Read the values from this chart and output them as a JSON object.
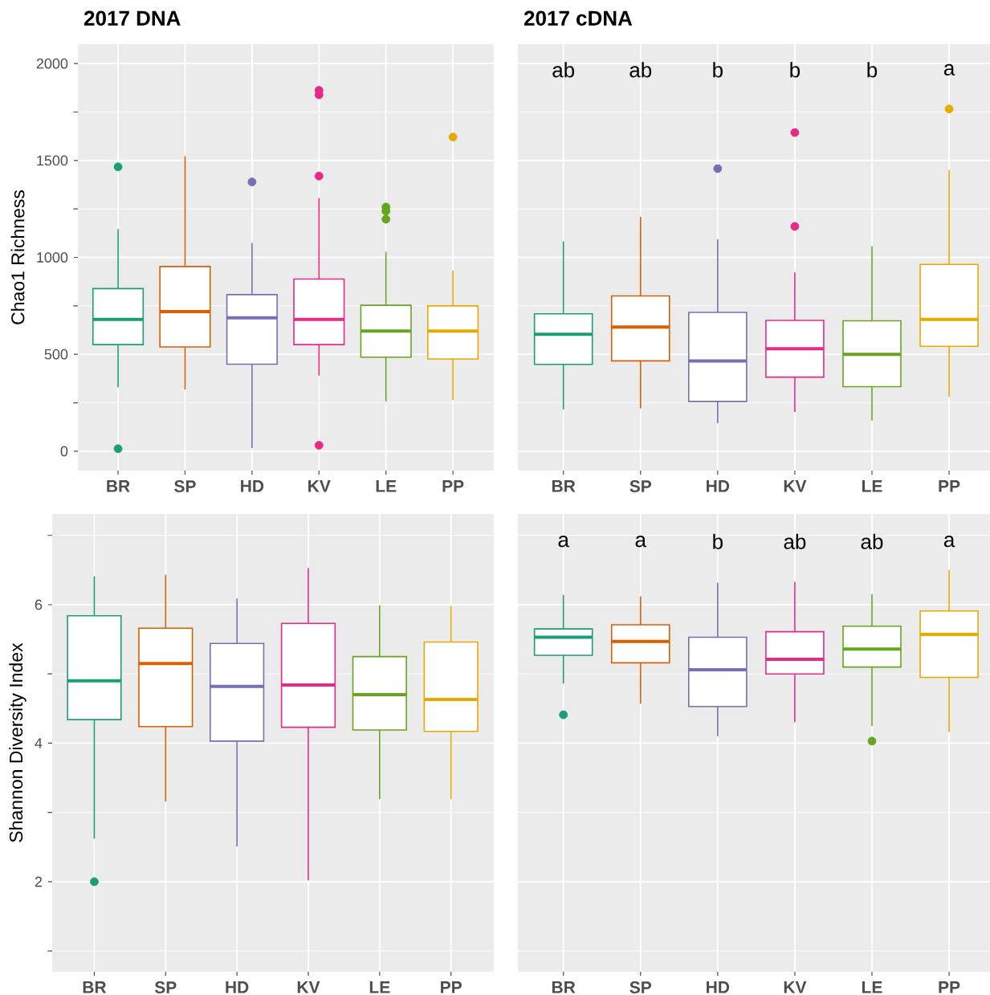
{
  "chart_data": [
    {
      "type": "box",
      "title": "2017 DNA",
      "ylabel": "Chao1 Richness",
      "categories": [
        "BR",
        "SP",
        "HD",
        "KV",
        "LE",
        "PP"
      ],
      "colors": [
        "#1b9e77",
        "#d95f02",
        "#7570b3",
        "#e7298a",
        "#66a61e",
        "#e6ab02"
      ],
      "boxes": [
        {
          "low": 330,
          "q1": 550,
          "median": 680,
          "q3": 839,
          "high": 1146,
          "outliers": [
            1467,
            13
          ]
        },
        {
          "low": 319,
          "q1": 538,
          "median": 720,
          "q3": 953,
          "high": 1522
        },
        {
          "low": 16,
          "q1": 449,
          "median": 688,
          "q3": 808,
          "high": 1075,
          "outliers": [
            1389
          ]
        },
        {
          "low": 390,
          "q1": 550,
          "median": 680,
          "q3": 888,
          "high": 1306,
          "outliers": [
            1862,
            1839,
            1420,
            31
          ]
        },
        {
          "low": 257,
          "q1": 485,
          "median": 620,
          "q3": 753,
          "high": 1029,
          "outliers": [
            1260,
            1239,
            1197
          ]
        },
        {
          "low": 265,
          "q1": 476,
          "median": 620,
          "q3": 750,
          "high": 932,
          "outliers": [
            1621
          ]
        }
      ],
      "ylim": [
        -100,
        2100
      ],
      "yticks": [
        0,
        500,
        1000,
        1500,
        2000
      ],
      "grid": true
    },
    {
      "type": "box",
      "title": "2017 cDNA",
      "categories": [
        "BR",
        "SP",
        "HD",
        "KV",
        "LE",
        "PP"
      ],
      "colors": [
        "#1b9e77",
        "#d95f02",
        "#7570b3",
        "#e7298a",
        "#66a61e",
        "#e6ab02"
      ],
      "boxes": [
        {
          "low": 216,
          "q1": 448,
          "median": 603,
          "q3": 709,
          "high": 1083
        },
        {
          "low": 221,
          "q1": 466,
          "median": 641,
          "q3": 801,
          "high": 1209
        },
        {
          "low": 145,
          "q1": 257,
          "median": 466,
          "q3": 716,
          "high": 1093,
          "outliers": [
            1458
          ]
        },
        {
          "low": 203,
          "q1": 382,
          "median": 529,
          "q3": 675,
          "high": 922,
          "outliers": [
            1644,
            1160
          ]
        },
        {
          "low": 158,
          "q1": 333,
          "median": 500,
          "q3": 673,
          "high": 1057
        },
        {
          "low": 281,
          "q1": 541,
          "median": 680,
          "q3": 964,
          "high": 1451,
          "outliers": [
            1766
          ]
        }
      ],
      "ylim": [
        -100,
        2100
      ],
      "yticks": [
        0,
        500,
        1000,
        1500,
        2000
      ],
      "grid": true,
      "tick_labels": "x",
      "annotations": [
        "ab",
        "ab",
        "b",
        "b",
        "b",
        "a"
      ]
    },
    {
      "type": "box",
      "ylabel": "Shannon Diversity Index",
      "categories": [
        "BR",
        "SP",
        "HD",
        "KV",
        "LE",
        "PP"
      ],
      "colors": [
        "#1b9e77",
        "#d95f02",
        "#7570b3",
        "#e7298a",
        "#66a61e",
        "#e6ab02"
      ],
      "boxes": [
        {
          "low": 2.62,
          "q1": 4.34,
          "median": 4.9,
          "q3": 5.84,
          "high": 6.41,
          "outliers": [
            2.0
          ]
        },
        {
          "low": 3.16,
          "q1": 4.24,
          "median": 5.15,
          "q3": 5.66,
          "high": 6.43
        },
        {
          "low": 2.51,
          "q1": 4.03,
          "median": 4.82,
          "q3": 5.44,
          "high": 6.09
        },
        {
          "low": 2.02,
          "q1": 4.23,
          "median": 4.84,
          "q3": 5.73,
          "high": 6.53
        },
        {
          "low": 3.19,
          "q1": 4.19,
          "median": 4.7,
          "q3": 5.25,
          "high": 5.99
        },
        {
          "low": 3.19,
          "q1": 4.17,
          "median": 4.63,
          "q3": 5.46,
          "high": 5.98
        }
      ],
      "ylim": [
        0.7,
        7.31
      ],
      "yticks": [
        2,
        4,
        6
      ],
      "grid": true
    },
    {
      "type": "box",
      "categories": [
        "BR",
        "SP",
        "HD",
        "KV",
        "LE",
        "PP"
      ],
      "colors": [
        "#1b9e77",
        "#d95f02",
        "#7570b3",
        "#e7298a",
        "#66a61e",
        "#e6ab02"
      ],
      "boxes": [
        {
          "low": 4.86,
          "q1": 5.27,
          "median": 5.53,
          "q3": 5.65,
          "high": 6.14,
          "outliers": [
            4.41
          ]
        },
        {
          "low": 4.57,
          "q1": 5.16,
          "median": 5.47,
          "q3": 5.71,
          "high": 6.12
        },
        {
          "low": 4.1,
          "q1": 4.53,
          "median": 5.06,
          "q3": 5.53,
          "high": 6.32
        },
        {
          "low": 4.3,
          "q1": 5.0,
          "median": 5.21,
          "q3": 5.61,
          "high": 6.33
        },
        {
          "low": 4.25,
          "q1": 5.1,
          "median": 5.36,
          "q3": 5.69,
          "high": 6.15,
          "outliers": [
            4.03
          ]
        },
        {
          "low": 4.16,
          "q1": 4.95,
          "median": 5.57,
          "q3": 5.91,
          "high": 6.5
        }
      ],
      "ylim": [
        0.7,
        7.31
      ],
      "yticks": [
        2,
        4,
        6
      ],
      "grid": true,
      "tick_labels": "x",
      "annotations": [
        "a",
        "a",
        "b",
        "ab",
        "ab",
        "a"
      ]
    }
  ]
}
